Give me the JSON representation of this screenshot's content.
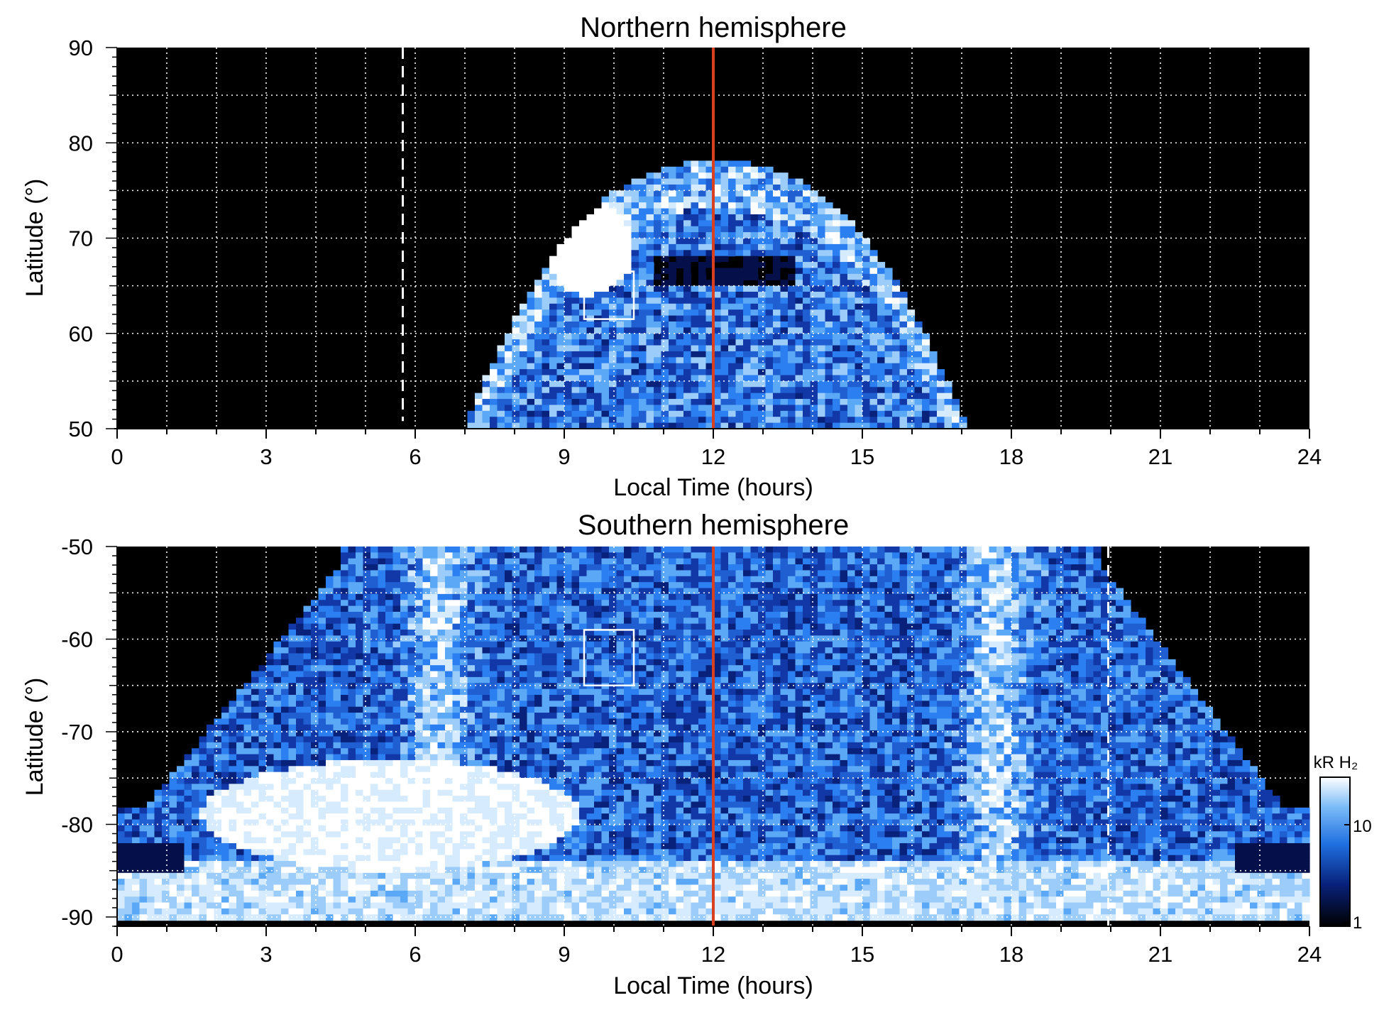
{
  "chart_data": [
    {
      "type": "heatmap",
      "title": "Northern hemisphere",
      "xlabel": "Local Time (hours)",
      "ylabel": "Latitude (°)",
      "xlim": [
        0,
        24
      ],
      "ylim": [
        50,
        90
      ],
      "x_ticks": [
        "0",
        "3",
        "6",
        "9",
        "12",
        "15",
        "18",
        "21",
        "24"
      ],
      "y_ticks": [
        "50",
        "60",
        "70",
        "80",
        "90"
      ],
      "grid": true,
      "coverage": {
        "lt_min": 7.0,
        "lt_max": 17.1,
        "lat_max": 78
      },
      "bright_patch": {
        "lt": [
          8.6,
          10.4
        ],
        "lat": [
          64,
          74
        ]
      },
      "box": {
        "lt": [
          9.4,
          10.4
        ],
        "lat": [
          61.5,
          66.5
        ]
      },
      "noon_line_lt": 12,
      "dashed_line_lt": 5.75,
      "colormap": "black-blue-white"
    },
    {
      "type": "heatmap",
      "title": "Southern hemisphere",
      "xlabel": "Local Time (hours)",
      "ylabel": "Latitude (°)",
      "xlim": [
        0,
        24
      ],
      "ylim": [
        -91,
        -50
      ],
      "x_ticks": [
        "0",
        "3",
        "6",
        "9",
        "12",
        "15",
        "18",
        "21",
        "24"
      ],
      "y_ticks": [
        "-50",
        "-60",
        "-70",
        "-80",
        "-90"
      ],
      "grid": true,
      "box": {
        "lt": [
          9.4,
          10.4
        ],
        "lat": [
          -65,
          -59
        ]
      },
      "noon_line_lt": 12,
      "dashed_line_lt": 19.95,
      "colormap": "black-blue-white"
    }
  ],
  "colorbar": {
    "label": "kR H₂",
    "ticks": [
      "10",
      "1"
    ],
    "range": [
      1,
      30
    ],
    "scale": "log"
  },
  "colors": {
    "noon_line": "#d9401f",
    "background": "#000000",
    "overlay": "#ffffff"
  }
}
